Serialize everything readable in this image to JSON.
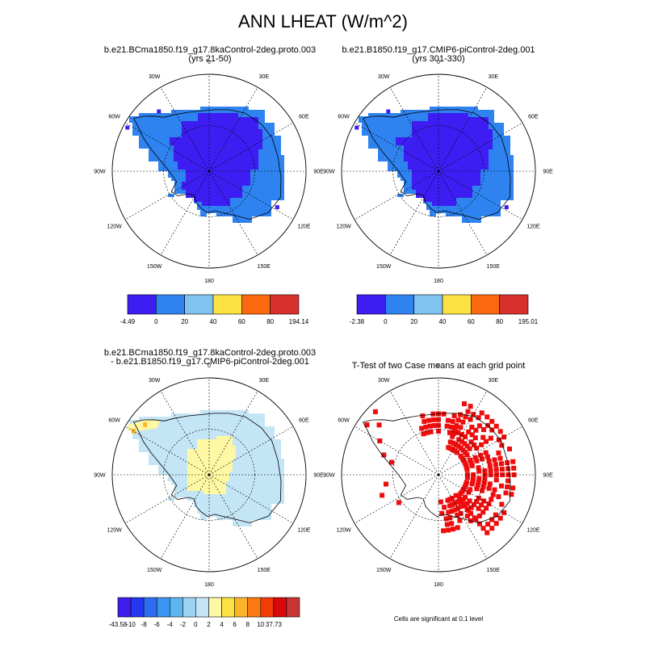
{
  "title": "ANN LHEAT (W/m^2)",
  "panels": [
    {
      "id": "case1",
      "title_line1": "b.e21.BCma1850.f19_g17.8kaControl-2deg.proto.003",
      "title_line2": "(yrs 21-50)",
      "colorbar": {
        "min_label": "-4.49",
        "max_label": "194.14",
        "tick_labels": [
          "0",
          "20",
          "40",
          "60",
          "80"
        ],
        "colors": [
          "#3d1df2",
          "#2f83f0",
          "#7fc3ee",
          "#fde243",
          "#fb6a10",
          "#d8302d"
        ]
      }
    },
    {
      "id": "case2",
      "title_line1": "b.e21.B1850.f19_g17.CMIP6-piControl-2deg.001",
      "title_line2": "(yrs 301-330)",
      "colorbar": {
        "min_label": "-2.38",
        "max_label": "195.01",
        "tick_labels": [
          "0",
          "20",
          "40",
          "60",
          "80"
        ],
        "colors": [
          "#3d1df2",
          "#2f83f0",
          "#7fc3ee",
          "#fde243",
          "#fb6a10",
          "#d8302d"
        ]
      }
    },
    {
      "id": "difference",
      "title_line1": "b.e21.BCma1850.f19_g17.8kaControl-2deg.proto.003",
      "title_line2": "- b.e21.B1850.f19_g17.CMIP6-piControl-2deg.001",
      "colorbar": {
        "min_label": "-43.58",
        "max_label": "37.73",
        "tick_labels": [
          "-10",
          "-8",
          "-6",
          "-4",
          "-2",
          "0",
          "2",
          "4",
          "6",
          "8",
          "10"
        ],
        "colors": [
          "#3f1ded",
          "#2337f0",
          "#2f6df0",
          "#3b95f1",
          "#5cb6f2",
          "#9dd3f2",
          "#c4e5f5",
          "#fef7a4",
          "#fde243",
          "#fcb52a",
          "#fb7a11",
          "#f43a05",
          "#d9080a",
          "#c83435"
        ]
      }
    },
    {
      "id": "ttest",
      "title_line1": "T-Test of two Case means at each grid point",
      "note": "Cells are significant at 0.1 level",
      "significant_color": "#ee0c0c"
    }
  ],
  "map": {
    "projection": "south-polar-stereographic",
    "lon_labels": [
      "0",
      "30E",
      "60E",
      "90E",
      "120E",
      "150E",
      "180",
      "150W",
      "120W",
      "90W",
      "60W",
      "30W"
    ]
  }
}
